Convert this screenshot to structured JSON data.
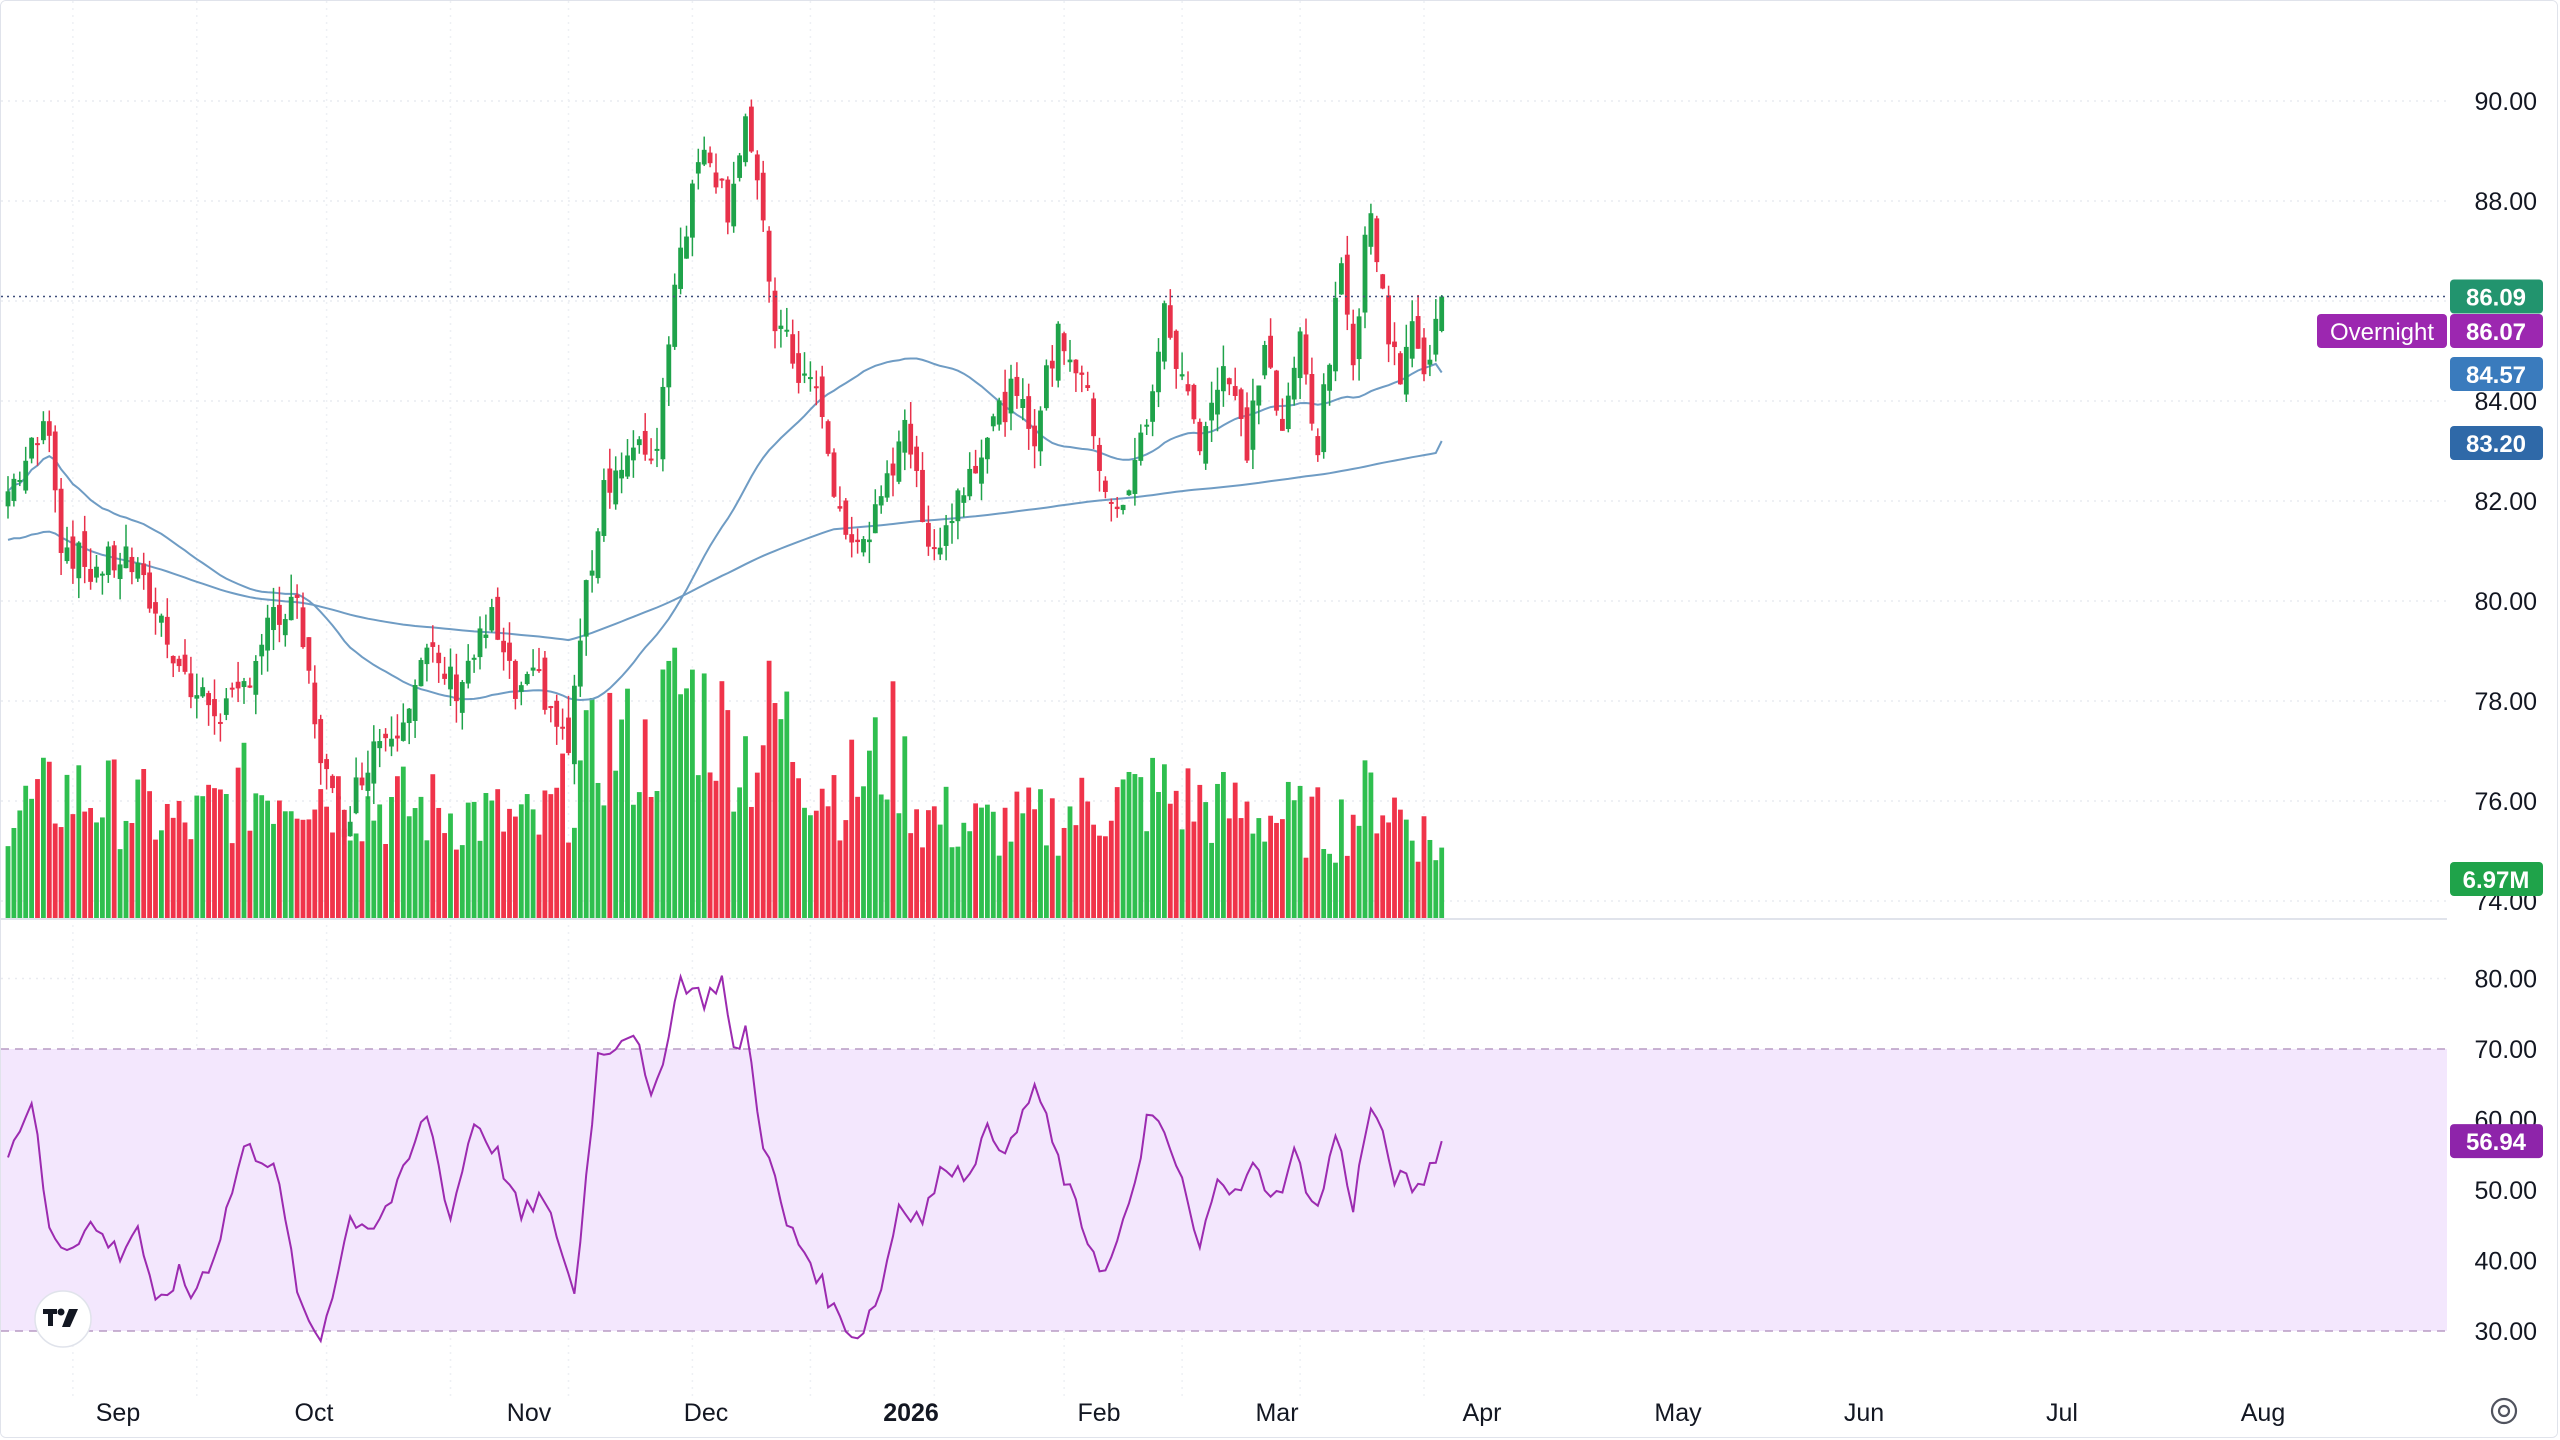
{
  "chart_data": {
    "type": "candlestick",
    "price_axis": {
      "ticks": [
        "90.00",
        "88.00",
        "86.00",
        "84.00",
        "82.00",
        "80.00",
        "78.00",
        "76.00",
        "74.00"
      ],
      "range": [
        73.0,
        91.2
      ]
    },
    "rsi_axis": {
      "ticks": [
        "80.00",
        "70.00",
        "60.00",
        "50.00",
        "40.00",
        "30.00"
      ],
      "range": [
        26.5,
        85.0
      ],
      "band": [
        30,
        70
      ]
    },
    "x_axis": {
      "labels": [
        "Sep",
        "Oct",
        "Nov",
        "Dec",
        "2026",
        "Feb",
        "Mar",
        "Apr",
        "May",
        "Jun",
        "Jul",
        "Aug"
      ]
    },
    "markers": {
      "last_price": {
        "label": "86.09",
        "value": 86.09
      },
      "overnight": {
        "name": "Overnight",
        "label": "86.07",
        "value": 86.07
      },
      "ma_short": {
        "label": "84.57",
        "value": 84.57
      },
      "ma_long": {
        "label": "83.20",
        "value": 83.2
      },
      "volume": {
        "label": "6.97M"
      },
      "rsi": {
        "label": "56.94",
        "value": 56.94
      }
    },
    "anchors": [
      {
        "i": 0,
        "v": 82.2
      },
      {
        "i": 5,
        "v": 83.2
      },
      {
        "i": 7,
        "v": 83.6
      },
      {
        "i": 9,
        "v": 81.2
      },
      {
        "i": 14,
        "v": 80.6
      },
      {
        "i": 20,
        "v": 80.9
      },
      {
        "i": 26,
        "v": 79.6
      },
      {
        "i": 31,
        "v": 78.2
      },
      {
        "i": 36,
        "v": 77.8
      },
      {
        "i": 39,
        "v": 78.0
      },
      {
        "i": 44,
        "v": 79.5
      },
      {
        "i": 49,
        "v": 79.8
      },
      {
        "i": 53,
        "v": 77.0
      },
      {
        "i": 55,
        "v": 76.0
      },
      {
        "i": 57,
        "v": 75.6
      },
      {
        "i": 62,
        "v": 77.2
      },
      {
        "i": 66,
        "v": 77.6
      },
      {
        "i": 71,
        "v": 78.9
      },
      {
        "i": 76,
        "v": 78.3
      },
      {
        "i": 82,
        "v": 79.6
      },
      {
        "i": 86,
        "v": 78.1
      },
      {
        "i": 90,
        "v": 78.4
      },
      {
        "i": 95,
        "v": 77.0
      },
      {
        "i": 97,
        "v": 79.3
      },
      {
        "i": 101,
        "v": 82.4
      },
      {
        "i": 106,
        "v": 82.9
      },
      {
        "i": 110,
        "v": 83.1
      },
      {
        "i": 113,
        "v": 86.5
      },
      {
        "i": 118,
        "v": 89.3
      },
      {
        "i": 122,
        "v": 87.9
      },
      {
        "i": 125,
        "v": 89.7
      },
      {
        "i": 128,
        "v": 87.3
      },
      {
        "i": 130,
        "v": 85.6
      },
      {
        "i": 134,
        "v": 84.6
      },
      {
        "i": 137,
        "v": 84.2
      },
      {
        "i": 140,
        "v": 82.2
      },
      {
        "i": 143,
        "v": 81.0
      },
      {
        "i": 148,
        "v": 81.8
      },
      {
        "i": 152,
        "v": 83.8
      },
      {
        "i": 155,
        "v": 81.5
      },
      {
        "i": 158,
        "v": 81.2
      },
      {
        "i": 162,
        "v": 82.4
      },
      {
        "i": 166,
        "v": 83.4
      },
      {
        "i": 170,
        "v": 84.1
      },
      {
        "i": 174,
        "v": 83.4
      },
      {
        "i": 178,
        "v": 85.4
      },
      {
        "i": 182,
        "v": 84.5
      },
      {
        "i": 186,
        "v": 82.3
      },
      {
        "i": 189,
        "v": 81.7
      },
      {
        "i": 193,
        "v": 83.7
      },
      {
        "i": 196,
        "v": 85.7
      },
      {
        "i": 199,
        "v": 84.4
      },
      {
        "i": 202,
        "v": 83.3
      },
      {
        "i": 206,
        "v": 84.7
      },
      {
        "i": 210,
        "v": 83.1
      },
      {
        "i": 213,
        "v": 85.2
      },
      {
        "i": 216,
        "v": 83.2
      },
      {
        "i": 219,
        "v": 85.3
      },
      {
        "i": 222,
        "v": 83.1
      },
      {
        "i": 224,
        "v": 84.9
      },
      {
        "i": 226,
        "v": 86.6
      },
      {
        "i": 228,
        "v": 85.0
      },
      {
        "i": 231,
        "v": 88.1
      },
      {
        "i": 233,
        "v": 85.9
      },
      {
        "i": 236,
        "v": 84.6
      },
      {
        "i": 238,
        "v": 85.6
      },
      {
        "i": 240,
        "v": 84.4
      },
      {
        "i": 243,
        "v": 86.09
      }
    ],
    "rsi_anchors": [
      {
        "i": 0,
        "v": 55
      },
      {
        "i": 4,
        "v": 63
      },
      {
        "i": 7,
        "v": 44
      },
      {
        "i": 10,
        "v": 42
      },
      {
        "i": 14,
        "v": 45
      },
      {
        "i": 19,
        "v": 41
      },
      {
        "i": 22,
        "v": 45
      },
      {
        "i": 25,
        "v": 33
      },
      {
        "i": 29,
        "v": 38
      },
      {
        "i": 31,
        "v": 35
      },
      {
        "i": 35,
        "v": 41
      },
      {
        "i": 40,
        "v": 56
      },
      {
        "i": 45,
        "v": 54
      },
      {
        "i": 50,
        "v": 32
      },
      {
        "i": 53,
        "v": 29
      },
      {
        "i": 58,
        "v": 46
      },
      {
        "i": 62,
        "v": 45
      },
      {
        "i": 66,
        "v": 50
      },
      {
        "i": 71,
        "v": 61
      },
      {
        "i": 75,
        "v": 46
      },
      {
        "i": 79,
        "v": 60
      },
      {
        "i": 83,
        "v": 55
      },
      {
        "i": 87,
        "v": 46
      },
      {
        "i": 90,
        "v": 49
      },
      {
        "i": 93,
        "v": 44
      },
      {
        "i": 96,
        "v": 35
      },
      {
        "i": 100,
        "v": 69
      },
      {
        "i": 106,
        "v": 73
      },
      {
        "i": 109,
        "v": 62
      },
      {
        "i": 114,
        "v": 80
      },
      {
        "i": 118,
        "v": 77
      },
      {
        "i": 121,
        "v": 80
      },
      {
        "i": 123,
        "v": 69
      },
      {
        "i": 125,
        "v": 73
      },
      {
        "i": 128,
        "v": 57
      },
      {
        "i": 132,
        "v": 45
      },
      {
        "i": 136,
        "v": 40
      },
      {
        "i": 140,
        "v": 33
      },
      {
        "i": 144,
        "v": 29
      },
      {
        "i": 148,
        "v": 36
      },
      {
        "i": 151,
        "v": 48
      },
      {
        "i": 155,
        "v": 46
      },
      {
        "i": 159,
        "v": 54
      },
      {
        "i": 162,
        "v": 52
      },
      {
        "i": 166,
        "v": 58
      },
      {
        "i": 170,
        "v": 56
      },
      {
        "i": 174,
        "v": 65
      },
      {
        "i": 178,
        "v": 54
      },
      {
        "i": 182,
        "v": 45
      },
      {
        "i": 186,
        "v": 38
      },
      {
        "i": 190,
        "v": 47
      },
      {
        "i": 193,
        "v": 60
      },
      {
        "i": 196,
        "v": 58
      },
      {
        "i": 199,
        "v": 51
      },
      {
        "i": 202,
        "v": 41
      },
      {
        "i": 205,
        "v": 53
      },
      {
        "i": 208,
        "v": 49
      },
      {
        "i": 211,
        "v": 53
      },
      {
        "i": 215,
        "v": 49
      },
      {
        "i": 218,
        "v": 55
      },
      {
        "i": 222,
        "v": 47
      },
      {
        "i": 225,
        "v": 58
      },
      {
        "i": 228,
        "v": 48
      },
      {
        "i": 231,
        "v": 62
      },
      {
        "i": 235,
        "v": 52
      },
      {
        "i": 239,
        "v": 50
      },
      {
        "i": 243,
        "v": 57
      }
    ],
    "volume_anchors": [
      {
        "i": 0,
        "v": 45
      },
      {
        "i": 10,
        "v": 55
      },
      {
        "i": 20,
        "v": 50
      },
      {
        "i": 30,
        "v": 40
      },
      {
        "i": 40,
        "v": 55
      },
      {
        "i": 50,
        "v": 60
      },
      {
        "i": 60,
        "v": 50
      },
      {
        "i": 70,
        "v": 48
      },
      {
        "i": 80,
        "v": 45
      },
      {
        "i": 90,
        "v": 40
      },
      {
        "i": 95,
        "v": 55
      },
      {
        "i": 102,
        "v": 80
      },
      {
        "i": 108,
        "v": 70
      },
      {
        "i": 114,
        "v": 100
      },
      {
        "i": 120,
        "v": 85
      },
      {
        "i": 126,
        "v": 70
      },
      {
        "i": 130,
        "v": 90
      },
      {
        "i": 136,
        "v": 65
      },
      {
        "i": 142,
        "v": 55
      },
      {
        "i": 150,
        "v": 75
      },
      {
        "i": 155,
        "v": 45
      },
      {
        "i": 165,
        "v": 40
      },
      {
        "i": 175,
        "v": 42
      },
      {
        "i": 185,
        "v": 50
      },
      {
        "i": 195,
        "v": 55
      },
      {
        "i": 205,
        "v": 48
      },
      {
        "i": 215,
        "v": 45
      },
      {
        "i": 225,
        "v": 40
      },
      {
        "i": 232,
        "v": 55
      },
      {
        "i": 243,
        "v": 30
      }
    ]
  }
}
